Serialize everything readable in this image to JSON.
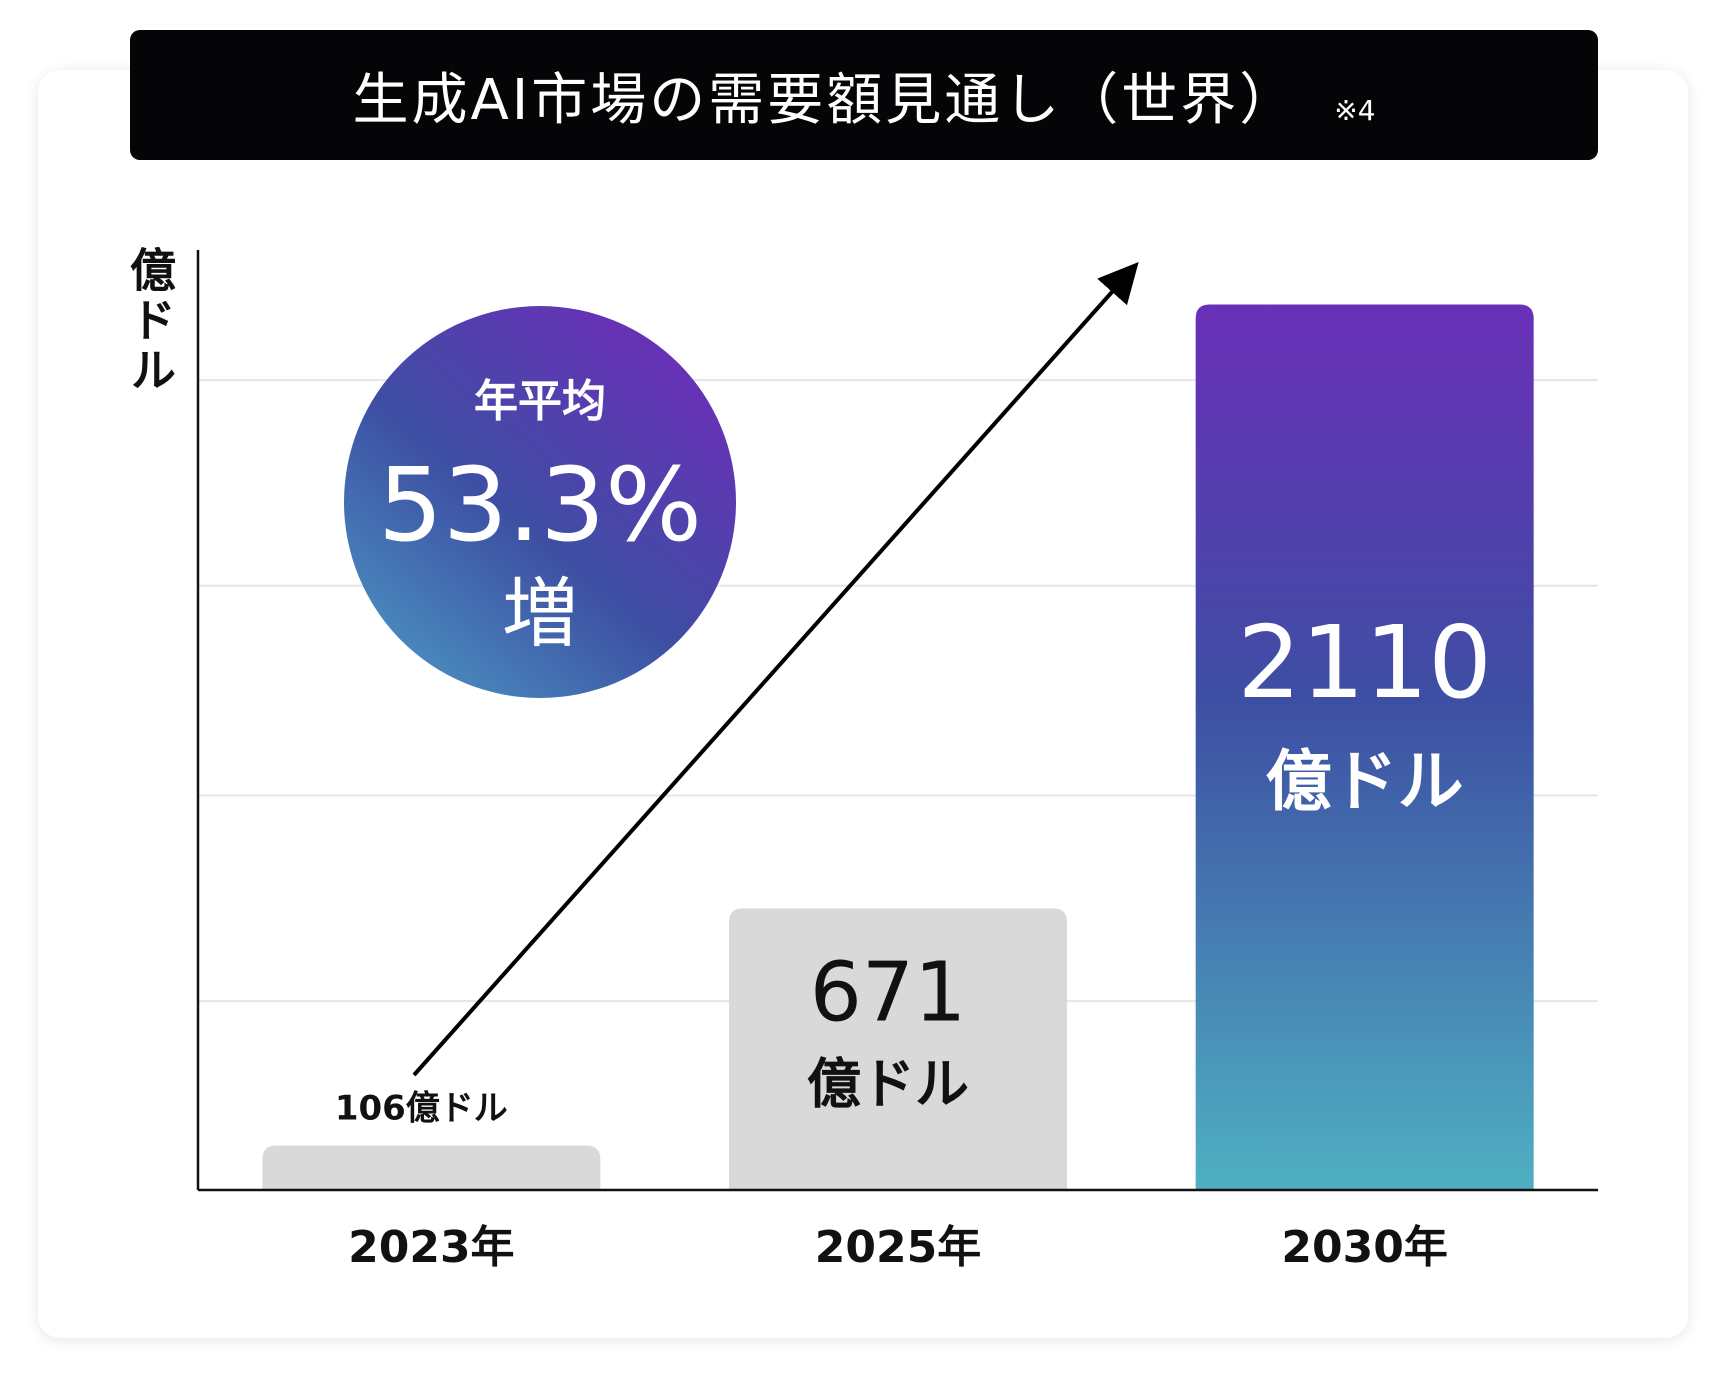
{
  "chart_data": {
    "type": "bar",
    "title": "生成AI市場の需要額見通し（世界）",
    "title_note": "※4",
    "ylabel": "億ドル",
    "unit": "億ドル",
    "categories": [
      "2023年",
      "2025年",
      "2030年"
    ],
    "values": [
      106,
      671,
      2110
    ],
    "value_labels": [
      "106",
      "671",
      "2110"
    ],
    "ylim": [
      0,
      2240
    ],
    "grid": true,
    "gridlines": [
      450,
      940,
      1440,
      1930
    ],
    "bar_colors": [
      "#d9d9d9",
      "#d9d9d9",
      "gradient"
    ],
    "highlight_gradient": [
      "#6a2fb8",
      "#3d4fa3",
      "#4fb0c2"
    ],
    "annotation": {
      "top": "年平均",
      "value": "53.3%",
      "bottom": "増",
      "gradient": [
        "#6a2fb8",
        "#3d4fa3",
        "#4a8fc0"
      ]
    }
  }
}
